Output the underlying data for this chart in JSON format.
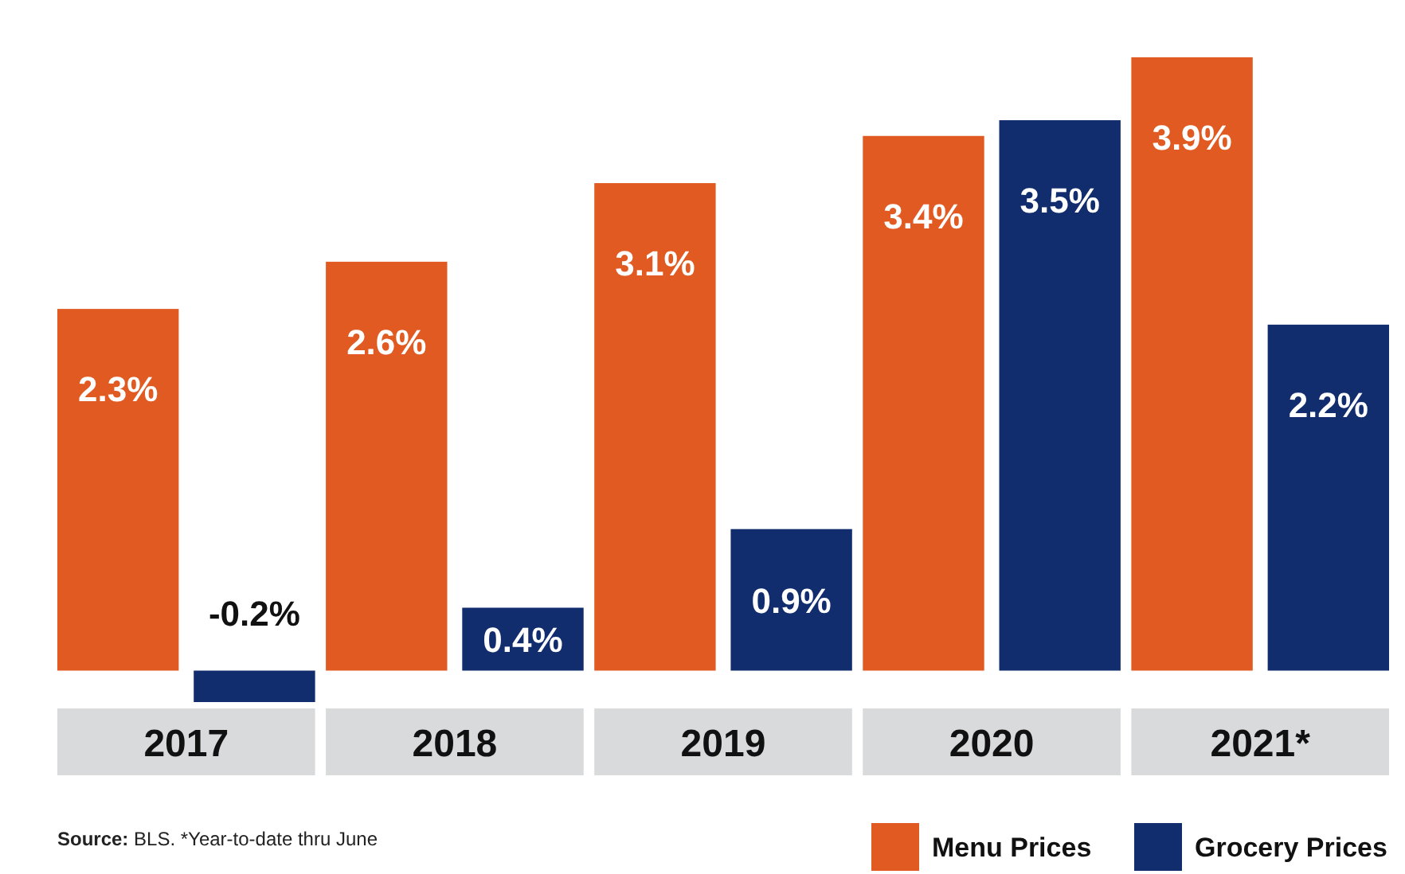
{
  "chart_data": {
    "type": "bar",
    "categories": [
      "2017",
      "2018",
      "2019",
      "2020",
      "2021*"
    ],
    "series": [
      {
        "name": "Menu Prices",
        "color": "#e05a22",
        "values": [
          2.3,
          2.6,
          3.1,
          3.4,
          3.9
        ],
        "value_labels": [
          "2.3%",
          "2.6%",
          "3.1%",
          "3.4%",
          "3.9%"
        ]
      },
      {
        "name": "Grocery Prices",
        "color": "#112d6e",
        "values": [
          -0.2,
          0.4,
          0.9,
          3.5,
          2.2
        ],
        "value_labels": [
          "-0.2%",
          "0.4%",
          "0.9%",
          "3.5%",
          "2.2%"
        ]
      }
    ],
    "annotations": [
      "Source: BLS. *Year-to-date thru June"
    ],
    "legend": "bottom right",
    "grid": false
  }
}
